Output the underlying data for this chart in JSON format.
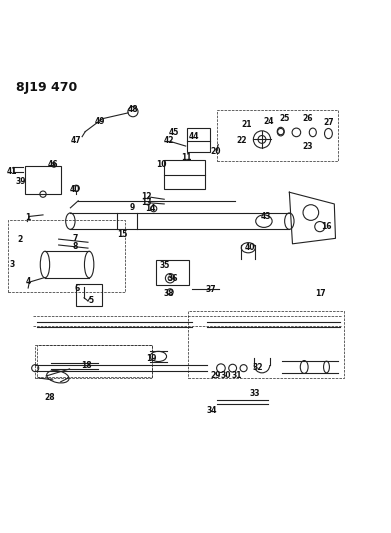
{
  "title": "8J19 470",
  "bg_color": "#ffffff",
  "title_fontsize": 9,
  "title_fontweight": "bold",
  "fig_width": 3.91,
  "fig_height": 5.33,
  "dpi": 100,
  "default_lw": 0.8,
  "line_color": "#222222",
  "label_color": "#111111",
  "label_fontsize": 5.5
}
